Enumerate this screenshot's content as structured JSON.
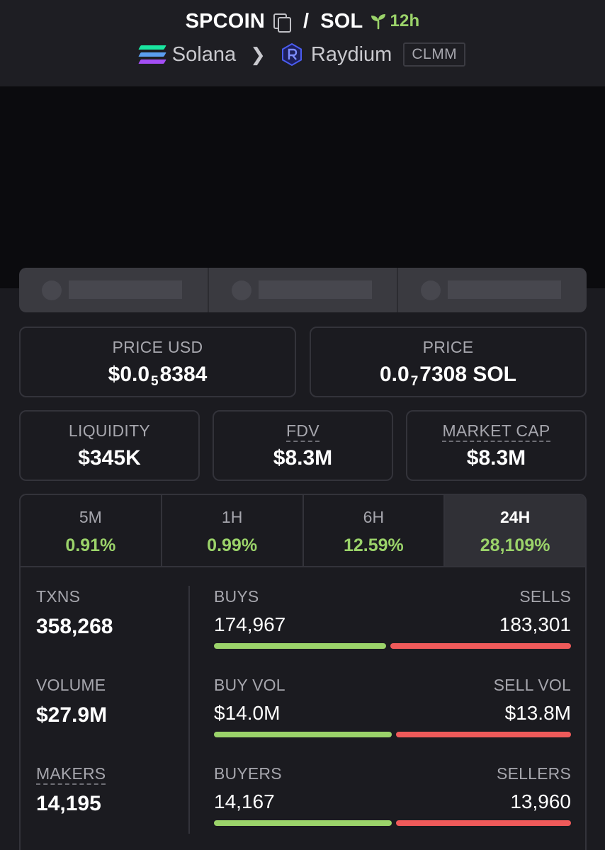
{
  "header": {
    "base_token": "SPCOIN",
    "separator": "/",
    "quote_token": "SOL",
    "age": "12h",
    "chain": "Solana",
    "dex": "Raydium",
    "pool_type": "CLMM",
    "age_color": "#9bd36a"
  },
  "prices": {
    "usd_label": "PRICE USD",
    "usd_prefix": "$0.0",
    "usd_zeros": "5",
    "usd_digits": "8384",
    "native_label": "PRICE",
    "native_prefix": "0.0",
    "native_zeros": "7",
    "native_digits": "7308 SOL"
  },
  "metrics": [
    {
      "label": "LIQUIDITY",
      "value": "$345K"
    },
    {
      "label": "FDV",
      "value": "$8.3M"
    },
    {
      "label": "MARKET CAP",
      "value": "$8.3M"
    }
  ],
  "periods": [
    {
      "label": "5M",
      "change": "0.91%"
    },
    {
      "label": "1H",
      "change": "0.99%"
    },
    {
      "label": "6H",
      "change": "12.59%"
    },
    {
      "label": "24H",
      "change": "28,109%",
      "active": true
    }
  ],
  "totals": [
    {
      "label": "TXNS",
      "value": "358,268"
    },
    {
      "label": "VOLUME",
      "value": "$27.9M"
    },
    {
      "label": "MAKERS",
      "value": "14,195"
    }
  ],
  "ratios": [
    {
      "left_label": "BUYS",
      "left_value": "174,967",
      "right_label": "SELLS",
      "right_value": "183,301",
      "buy_fraction": 0.488
    },
    {
      "left_label": "BUY VOL",
      "left_value": "$14.0M",
      "right_label": "SELL VOL",
      "right_value": "$13.8M",
      "buy_fraction": 0.504
    },
    {
      "left_label": "BUYERS",
      "left_value": "14,167",
      "right_label": "SELLERS",
      "right_value": "13,960",
      "buy_fraction": 0.504
    }
  ],
  "colors": {
    "positive": "#9bd36a",
    "negative": "#ef5a5a"
  }
}
